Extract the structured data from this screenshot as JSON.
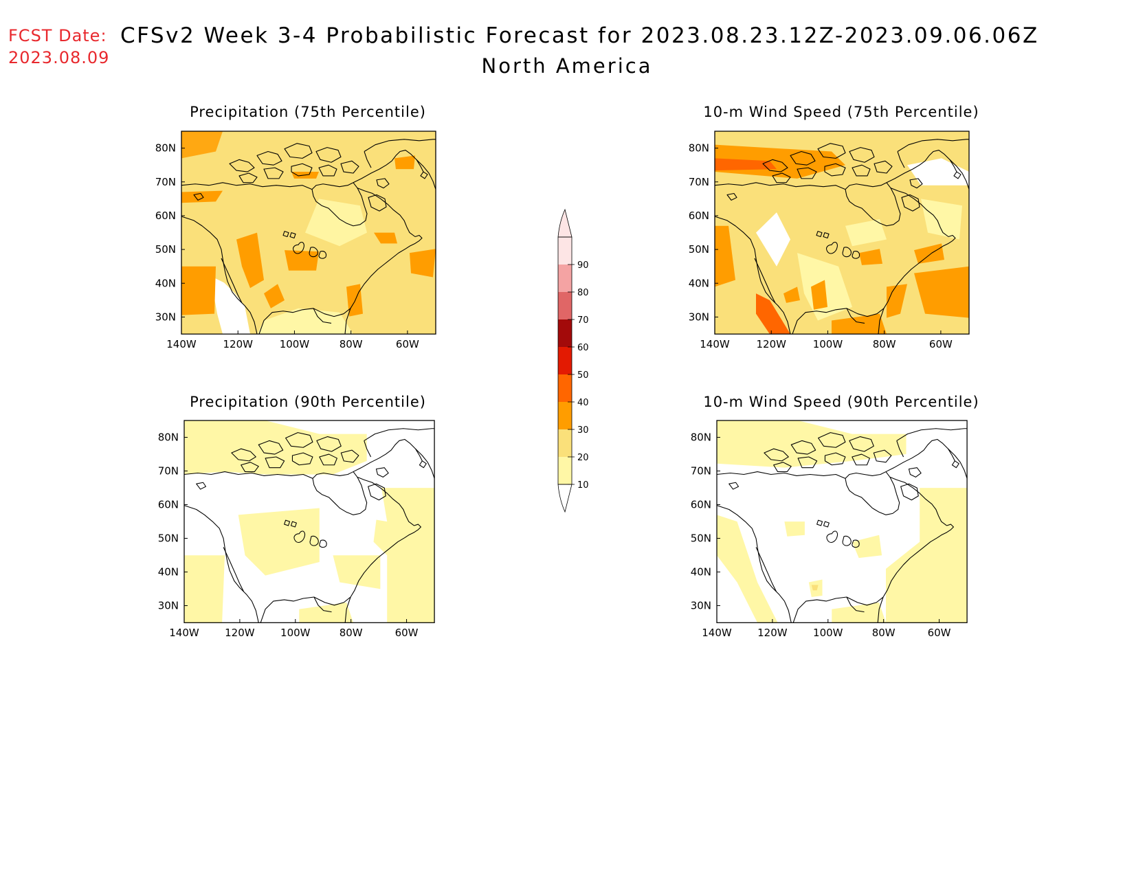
{
  "header": {
    "fcst_label": "FCST Date:",
    "fcst_date": "2023.08.09",
    "title": "CFSv2 Week 3-4 Probabilistic Forecast for 2023.08.23.12Z-2023.09.06.06Z",
    "region": "North America"
  },
  "axes": {
    "lon_labels": [
      "140W",
      "120W",
      "100W",
      "80W",
      "60W"
    ],
    "lat_labels": [
      "80N",
      "70N",
      "60N",
      "50N",
      "40N",
      "30N"
    ]
  },
  "panels": [
    {
      "id": "precip75",
      "title": "Precipitation (75th Percentile)",
      "field": "precipitation",
      "percentile": 75,
      "dominant_category": "20-30"
    },
    {
      "id": "wind75",
      "title": "10-m Wind Speed (75th Percentile)",
      "field": "10m wind speed",
      "percentile": 75,
      "dominant_category": "20-30"
    },
    {
      "id": "precip90",
      "title": "Precipitation (90th Percentile)",
      "field": "precipitation",
      "percentile": 90,
      "dominant_category": "<10 / 10-20"
    },
    {
      "id": "wind90",
      "title": "10-m Wind Speed (90th Percentile)",
      "field": "10m wind speed",
      "percentile": 90,
      "dominant_category": "<10 / 10-20"
    }
  ],
  "colorbar": {
    "labels": [
      "10",
      "20",
      "30",
      "40",
      "50",
      "60",
      "70",
      "80",
      "90"
    ],
    "colors": [
      "#ffffff",
      "#fff7a6",
      "#fae07a",
      "#ff9d00",
      "#ff6600",
      "#e31a02",
      "#a30a0a",
      "#e06666",
      "#f4a3a3",
      "#fde5e5"
    ]
  }
}
